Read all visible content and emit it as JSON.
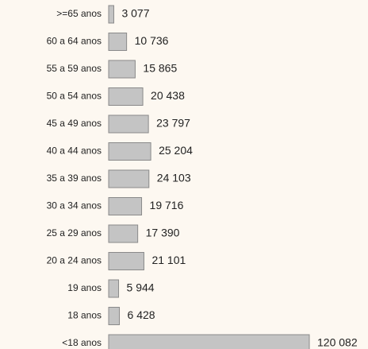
{
  "chart_data": {
    "type": "bar",
    "orientation": "horizontal",
    "categories": [
      ">=65 anos",
      "60 a 64 anos",
      "55 a 59 anos",
      "50 a 54 anos",
      "45 a 49 anos",
      "40 a 44 anos",
      "35 a 39 anos",
      "30 a 34 anos",
      "25 a 29 anos",
      "20 a 24 anos",
      "19 anos",
      "18 anos",
      "<18 anos"
    ],
    "values": [
      3077,
      10736,
      15865,
      20438,
      23797,
      25204,
      24103,
      19716,
      17390,
      21101,
      5944,
      6428,
      120082
    ],
    "value_labels": [
      "3 077",
      "10 736",
      "15 865",
      "20 438",
      "23 797",
      "25 204",
      "24 103",
      "19 716",
      "17 390",
      "21 101",
      "5 944",
      "6 428",
      "120 082"
    ],
    "color": "#c4c4c4"
  }
}
